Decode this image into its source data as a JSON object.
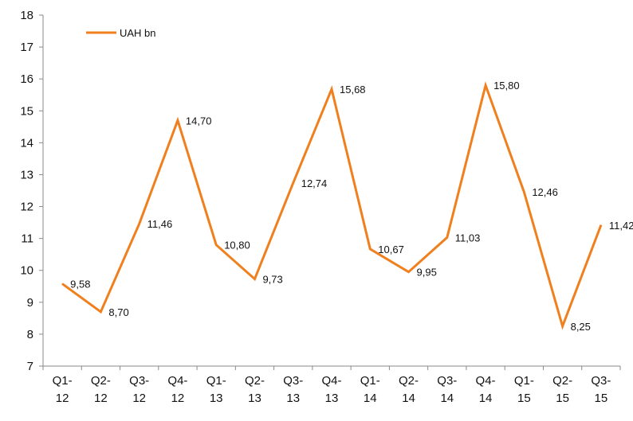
{
  "chart_data": {
    "type": "line",
    "categories": [
      "Q1-12",
      "Q2-12",
      "Q3-12",
      "Q4-12",
      "Q1-13",
      "Q2-13",
      "Q3-13",
      "Q4-13",
      "Q1-14",
      "Q2-14",
      "Q3-14",
      "Q4-14",
      "Q1-15",
      "Q2-15",
      "Q3-15"
    ],
    "category_lines": [
      [
        "Q1-",
        "12"
      ],
      [
        "Q2-",
        "12"
      ],
      [
        "Q3-",
        "12"
      ],
      [
        "Q4-",
        "12"
      ],
      [
        "Q1-",
        "13"
      ],
      [
        "Q2-",
        "13"
      ],
      [
        "Q3-",
        "13"
      ],
      [
        "Q4-",
        "13"
      ],
      [
        "Q1-",
        "14"
      ],
      [
        "Q2-",
        "14"
      ],
      [
        "Q3-",
        "14"
      ],
      [
        "Q4-",
        "14"
      ],
      [
        "Q1-",
        "15"
      ],
      [
        "Q2-",
        "15"
      ],
      [
        "Q3-",
        "15"
      ]
    ],
    "series": [
      {
        "name": "UAH bn",
        "values": [
          9.58,
          8.7,
          11.46,
          14.7,
          10.8,
          9.73,
          12.74,
          15.68,
          10.67,
          9.95,
          11.03,
          15.8,
          12.46,
          8.25,
          11.42
        ],
        "data_labels": [
          "9,58",
          "8,70",
          "11,46",
          "14,70",
          "10,80",
          "9,73",
          "12,74",
          "15,68",
          "10,67",
          "9,95",
          "11,03",
          "15,80",
          "12,46",
          "8,25",
          "11,42"
        ],
        "color": "#F07F1E"
      }
    ],
    "ylim": [
      7,
      18
    ],
    "yticks": [
      7,
      8,
      9,
      10,
      11,
      12,
      13,
      14,
      15,
      16,
      17,
      18
    ],
    "grid": false,
    "legend": "top-left"
  }
}
